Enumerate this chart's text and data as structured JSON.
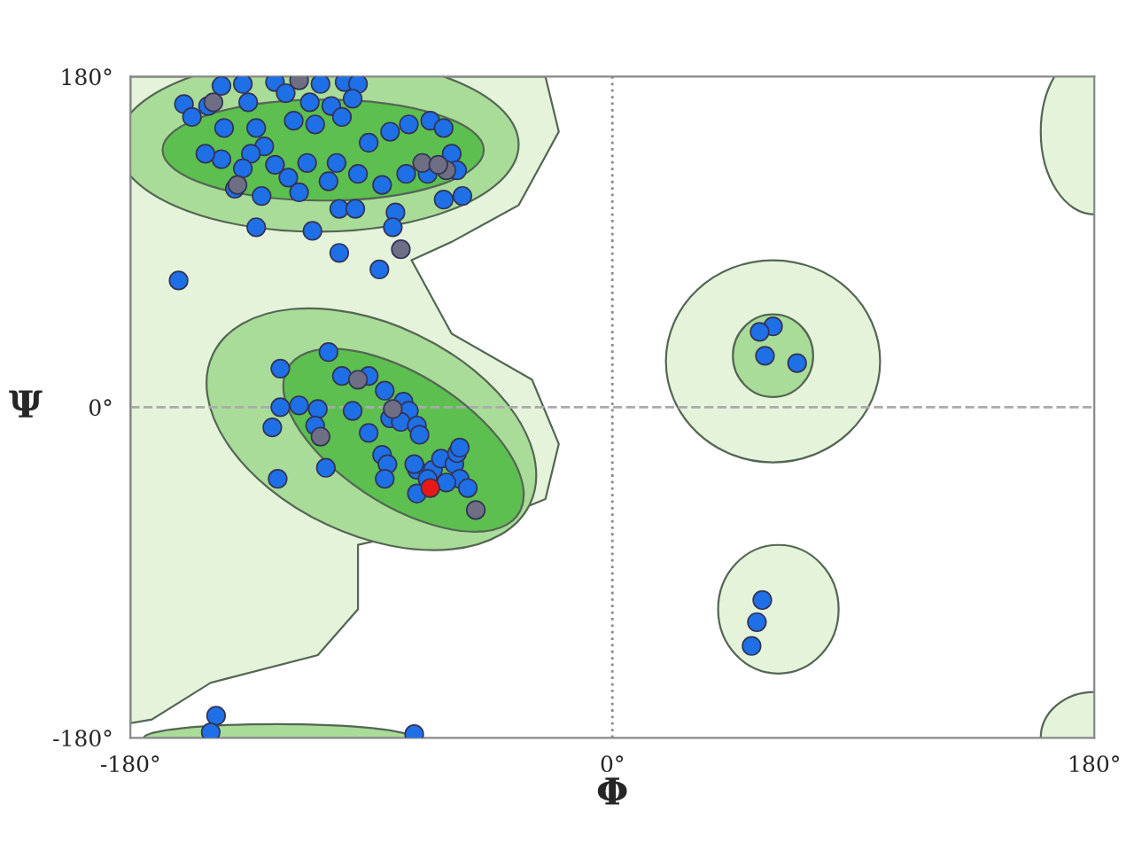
{
  "chart_data": {
    "type": "scatter",
    "xlabel": "Φ",
    "ylabel": "Ψ",
    "xlim": [
      -180,
      180
    ],
    "ylim": [
      -180,
      180
    ],
    "xticks": [
      {
        "value": -180,
        "label": "-180°"
      },
      {
        "value": 0,
        "label": "0°"
      },
      {
        "value": 180,
        "label": "180°"
      }
    ],
    "yticks": [
      {
        "value": -180,
        "label": "-180°"
      },
      {
        "value": 0,
        "label": "0°"
      },
      {
        "value": 180,
        "label": "180°"
      }
    ],
    "grid": false,
    "legend": false,
    "marker": "circle",
    "ref_lines": [
      {
        "axis": "x",
        "value": 0,
        "color": "#888888",
        "line_style": "dotted"
      },
      {
        "axis": "y",
        "value": 0,
        "color": "#aaaaaa",
        "line_style": "dashed"
      }
    ],
    "series": [
      {
        "color": "#1f6fe6",
        "x": [
          -146,
          -138,
          -126,
          -109,
          -100,
          -95,
          -160,
          -157,
          -151,
          -136,
          -122,
          -113,
          -105,
          -97,
          -101,
          -145,
          -133,
          -130,
          -119,
          -111,
          -135,
          -126,
          -121,
          -114,
          -103,
          -91,
          -83,
          -76,
          -68,
          -63,
          -60,
          -69,
          -77,
          -86,
          -95,
          -106,
          -117,
          -131,
          -141,
          -138,
          -146,
          -152,
          -102,
          -96,
          -81,
          -82,
          -133,
          -112,
          -87,
          -102,
          -162,
          -56,
          -58,
          -63,
          -106,
          -124,
          -101,
          -91,
          -85,
          -78,
          -76,
          -83,
          -97,
          -110,
          -117,
          -124,
          -127,
          -111,
          -91,
          -79,
          -73,
          -72,
          -125,
          -107,
          -86,
          -84,
          -85,
          -73,
          -67,
          -64,
          -59,
          -57,
          -62,
          -69,
          -74,
          -58,
          -54,
          -73,
          -57,
          60,
          55,
          57,
          69,
          56,
          54,
          52,
          -148,
          -150,
          -74
        ],
        "values": [
          175,
          176,
          177,
          176,
          177,
          176,
          165,
          158,
          164,
          166,
          171,
          166,
          164,
          168,
          158,
          152,
          152,
          142,
          156,
          154,
          138,
          132,
          125,
          133,
          133,
          144,
          150,
          154,
          156,
          152,
          138,
          127,
          127,
          121,
          127,
          123,
          117,
          115,
          119,
          130,
          135,
          138,
          108,
          108,
          106,
          98,
          98,
          96,
          75,
          84,
          69,
          115,
          129,
          113,
          30,
          21,
          17,
          17,
          9,
          3,
          -2,
          -6,
          -2,
          -1,
          1,
          0,
          -11,
          -10,
          -14,
          -8,
          -10,
          -15,
          -39,
          -33,
          -26,
          -31,
          -39,
          -34,
          -34,
          -28,
          -31,
          -39,
          -41,
          -39,
          -31,
          -25,
          -44,
          -47,
          -22,
          44,
          41,
          28,
          24,
          -105,
          -117,
          -130,
          -168,
          -177,
          -178
        ]
      },
      {
        "color": "#6e6e84",
        "x": [
          -117,
          -149,
          -140,
          -79,
          -71,
          -62,
          -65,
          -95,
          -109,
          -82,
          -51
        ],
        "values": [
          178,
          166,
          121,
          86,
          133,
          129,
          132,
          15,
          -16,
          -1,
          -56
        ]
      },
      {
        "color": "#e81818",
        "x": [
          -68
        ],
        "values": [
          -44
        ]
      }
    ]
  }
}
